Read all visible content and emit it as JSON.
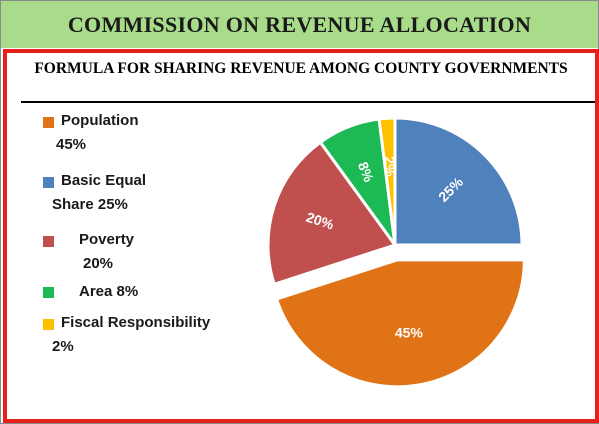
{
  "banner": {
    "title": "COMMISSION ON REVENUE ALLOCATION"
  },
  "colors": {
    "banner_bg": "#a9dc8a",
    "panel_border": "#e8201c",
    "population": "#e07316",
    "basic_equal_share": "#4f81bd",
    "poverty": "#c0504d",
    "area": "#1db954",
    "fiscal_responsibility": "#ffc000"
  },
  "legend": {
    "population": [
      "Population",
      "45%"
    ],
    "basic_equal_share": [
      "Basic Equal",
      "Share 25%"
    ],
    "poverty": [
      "Poverty",
      "20%"
    ],
    "area": [
      "Area 8%"
    ],
    "fiscal_responsibility": [
      "Fiscal Responsibility",
      "2%"
    ]
  },
  "chart_data": {
    "type": "pie",
    "title": "FORMULA FOR SHARING REVENUE AMONG COUNTY GOVERNMENTS",
    "legend_position": "left",
    "categories": [
      "Population",
      "Basic Equal Share",
      "Poverty",
      "Area",
      "Fiscal Responsibility"
    ],
    "values": [
      45,
      25,
      20,
      8,
      2
    ],
    "data_labels": [
      "45%",
      "25%",
      "20%",
      "8%",
      "2%"
    ],
    "colors": [
      "#e07316",
      "#4f81bd",
      "#c0504d",
      "#1db954",
      "#ffc000"
    ],
    "exploded": [
      true,
      false,
      false,
      false,
      false
    ]
  }
}
